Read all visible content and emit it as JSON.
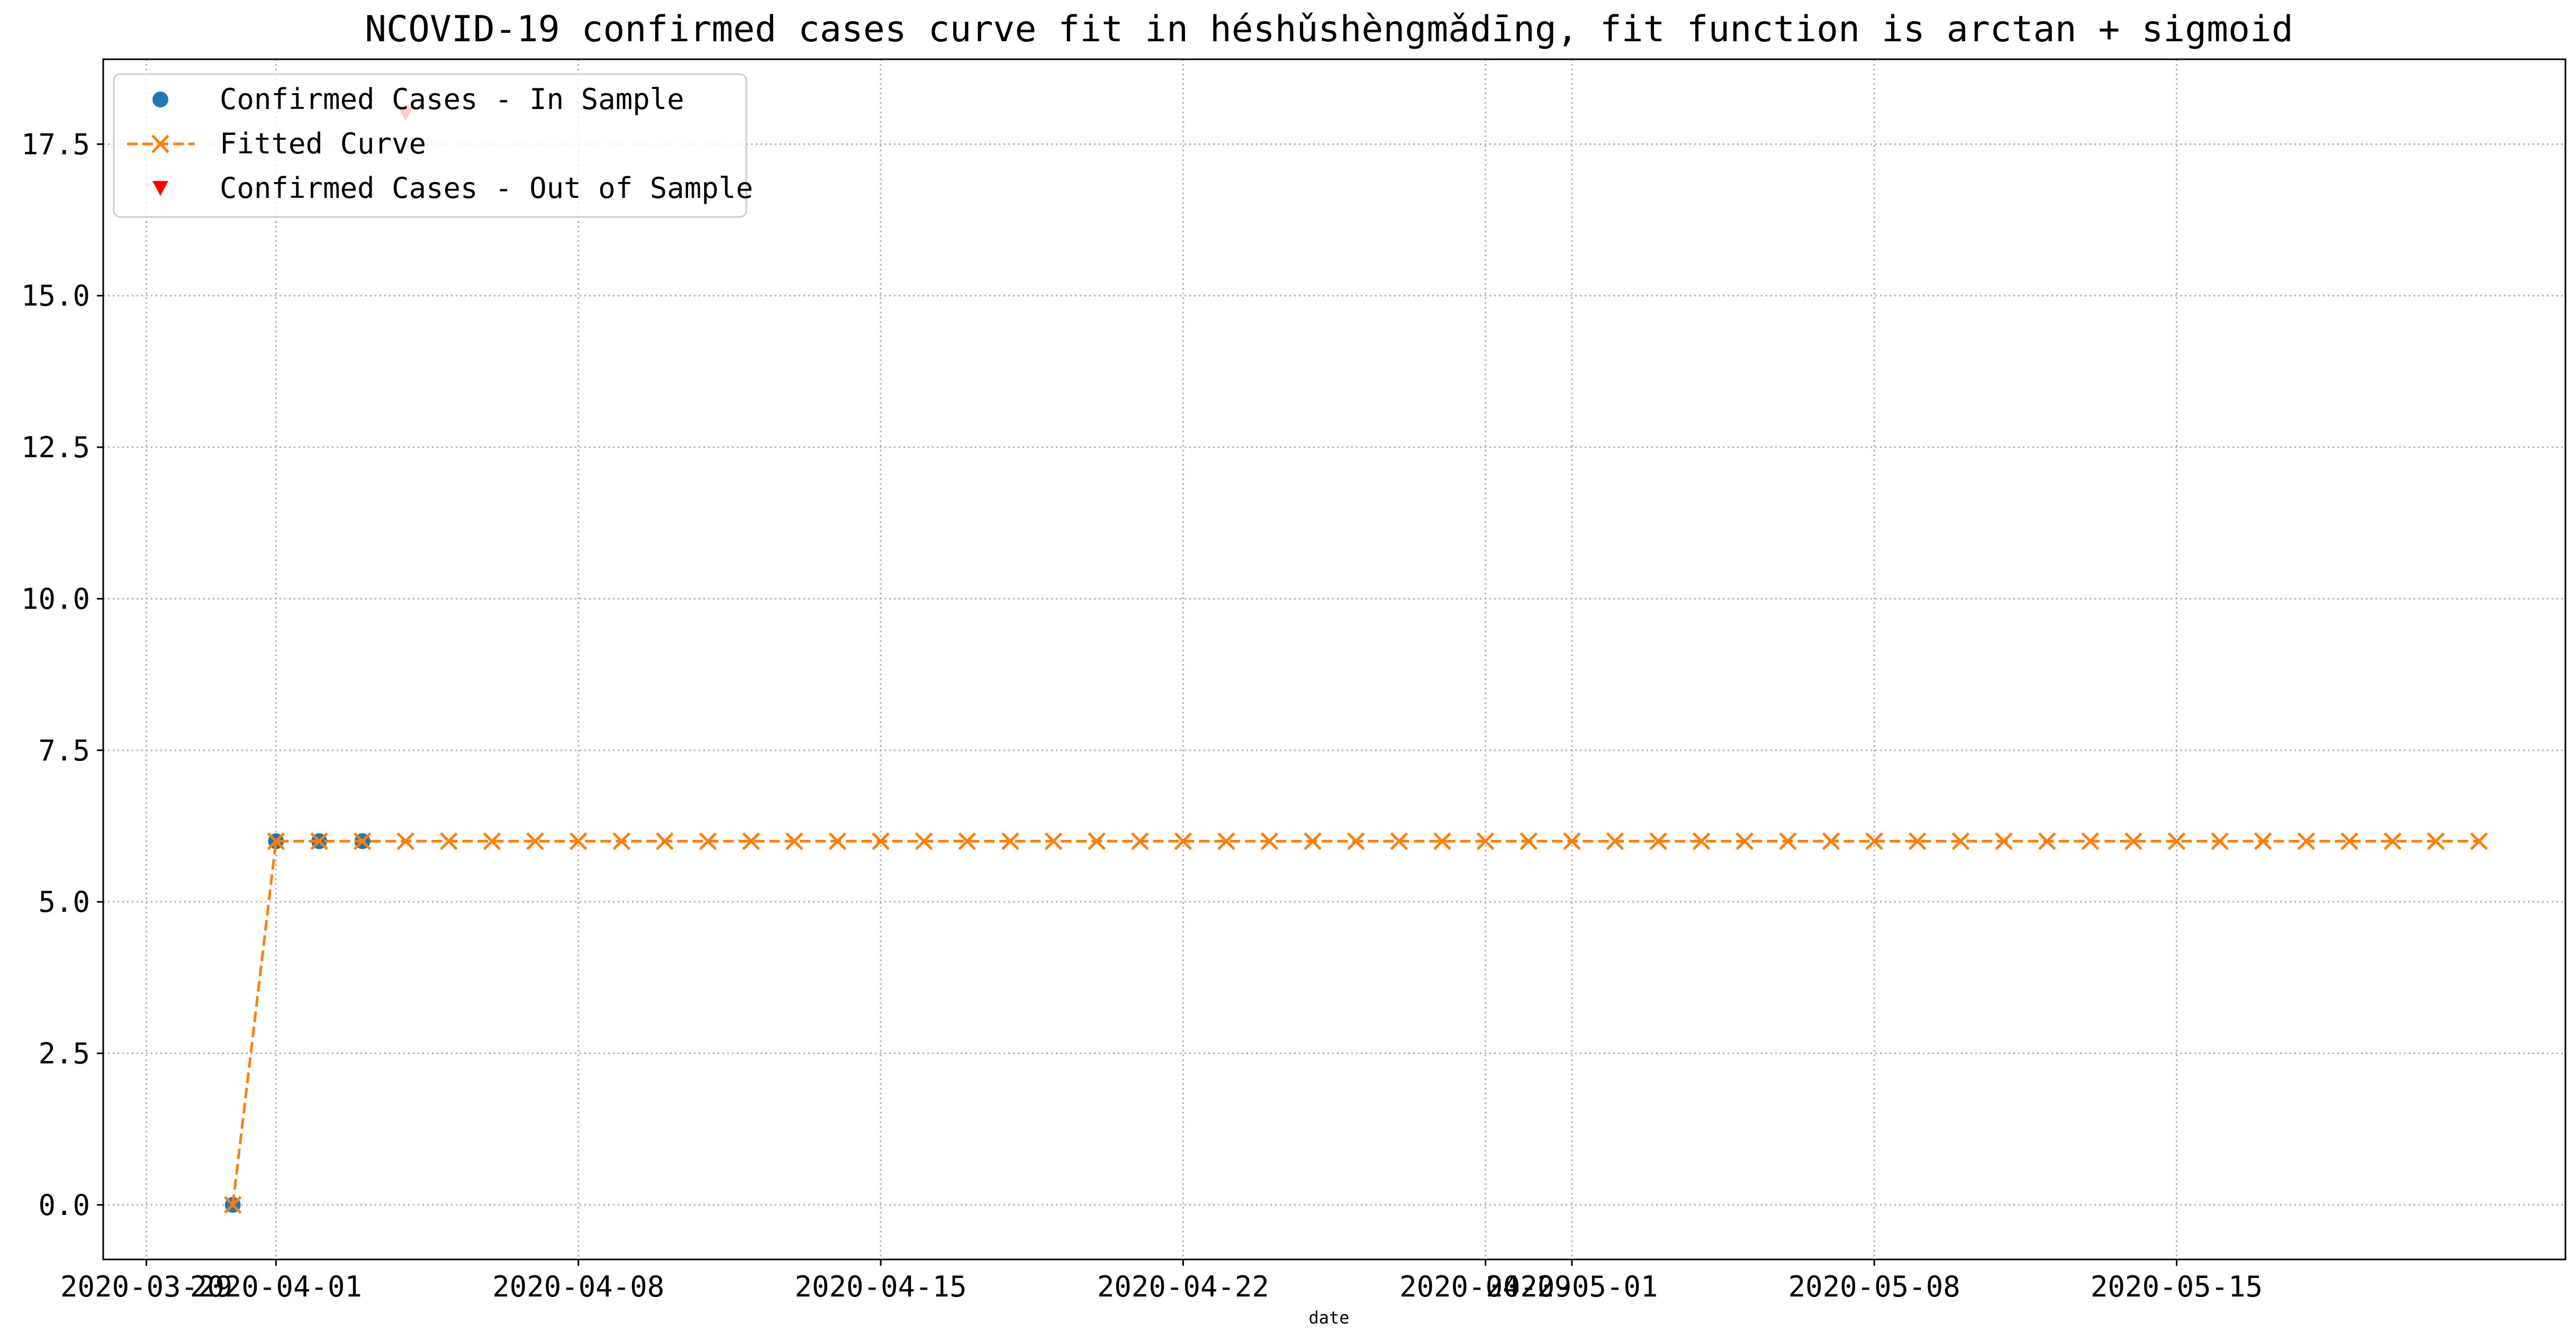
{
  "chart_data": {
    "type": "line",
    "title": "NCOVID-19 confirmed cases curve fit in héshǔshèngmǎdīng, fit function is arctan + sigmoid",
    "xlabel": "date",
    "ylabel": "",
    "x_ticks": [
      "2020-03-29",
      "2020-04-01",
      "2020-04-08",
      "2020-04-15",
      "2020-04-22",
      "2020-04-29",
      "2020-05-01",
      "2020-05-08",
      "2020-05-15"
    ],
    "y_ticks": [
      "0.0",
      "2.5",
      "5.0",
      "7.5",
      "10.0",
      "12.5",
      "15.0",
      "17.5"
    ],
    "xlim": [
      "2020-03-28",
      "2020-05-24"
    ],
    "ylim": [
      -0.9,
      18.9
    ],
    "grid": true,
    "grid_style": "dotted",
    "legend_position": "top-left",
    "series": [
      {
        "name": "Confirmed Cases - In Sample",
        "marker": "circle",
        "line": "none",
        "color": "#1f77b4",
        "points": [
          {
            "x": "2020-03-31",
            "y": 0
          },
          {
            "x": "2020-04-01",
            "y": 6
          },
          {
            "x": "2020-04-02",
            "y": 6
          },
          {
            "x": "2020-04-03",
            "y": 6
          }
        ]
      },
      {
        "name": "Fitted Curve",
        "marker": "x",
        "line": "dashed",
        "color": "#ff7f0e",
        "start_date": "2020-03-31",
        "values": [
          0,
          6,
          6,
          6,
          6,
          6,
          6,
          6,
          6,
          6,
          6,
          6,
          6,
          6,
          6,
          6,
          6,
          6,
          6,
          6,
          6,
          6,
          6,
          6,
          6,
          6,
          6,
          6,
          6,
          6,
          6,
          6,
          6,
          6,
          6,
          6,
          6,
          6,
          6,
          6,
          6,
          6,
          6,
          6,
          6,
          6,
          6,
          6,
          6,
          6,
          6,
          6,
          6
        ]
      },
      {
        "name": "Confirmed Cases - Out of Sample",
        "marker": "triangle-down",
        "line": "none",
        "color": "#ff0000",
        "points": [
          {
            "x": "2020-04-04",
            "y": 18
          }
        ]
      }
    ]
  }
}
